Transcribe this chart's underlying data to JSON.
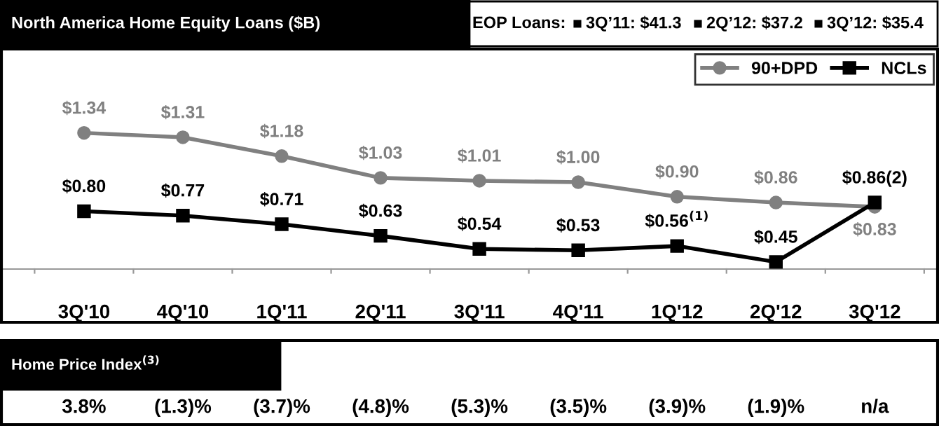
{
  "chart_data": {
    "type": "line",
    "title": "North America Home Equity Loans ($B)",
    "categories": [
      "3Q'10",
      "4Q'10",
      "1Q'11",
      "2Q'11",
      "3Q'11",
      "4Q'11",
      "1Q'12",
      "2Q'12",
      "3Q'12"
    ],
    "series": [
      {
        "name": "90+DPD",
        "color": "#808080",
        "marker": "circle",
        "values": [
          1.34,
          1.31,
          1.18,
          1.03,
          1.01,
          1.0,
          0.9,
          0.86,
          0.83
        ],
        "value_labels": [
          "$1.34",
          "$1.31",
          "$1.18",
          "$1.03",
          "$1.01",
          "$1.00",
          "$0.90",
          "$0.86",
          "$0.83"
        ]
      },
      {
        "name": "NCLs",
        "color": "#000000",
        "marker": "square",
        "values": [
          0.8,
          0.77,
          0.71,
          0.63,
          0.54,
          0.53,
          0.56,
          0.45,
          0.86
        ],
        "value_labels": [
          "$0.80",
          "$0.77",
          "$0.71",
          "$0.63",
          "$0.54",
          "$0.53",
          "$0.56$^{(1)}$",
          "$0.45",
          "$0.86(2)"
        ]
      }
    ],
    "legend": "top right",
    "grid": false,
    "annotations": [
      "EOP Loans:",
      "3Q’11: $41.3",
      "2Q’12: $37.2",
      "3Q’12: $35.4",
      "Home Price Index$^{(3)}$",
      "3.8%",
      "(1.3)%",
      "(3.7)%",
      "(4.8)%",
      "(5.3)%",
      "(3.5)%",
      "(3.9)%",
      "(1.9)%",
      "n/a"
    ]
  }
}
